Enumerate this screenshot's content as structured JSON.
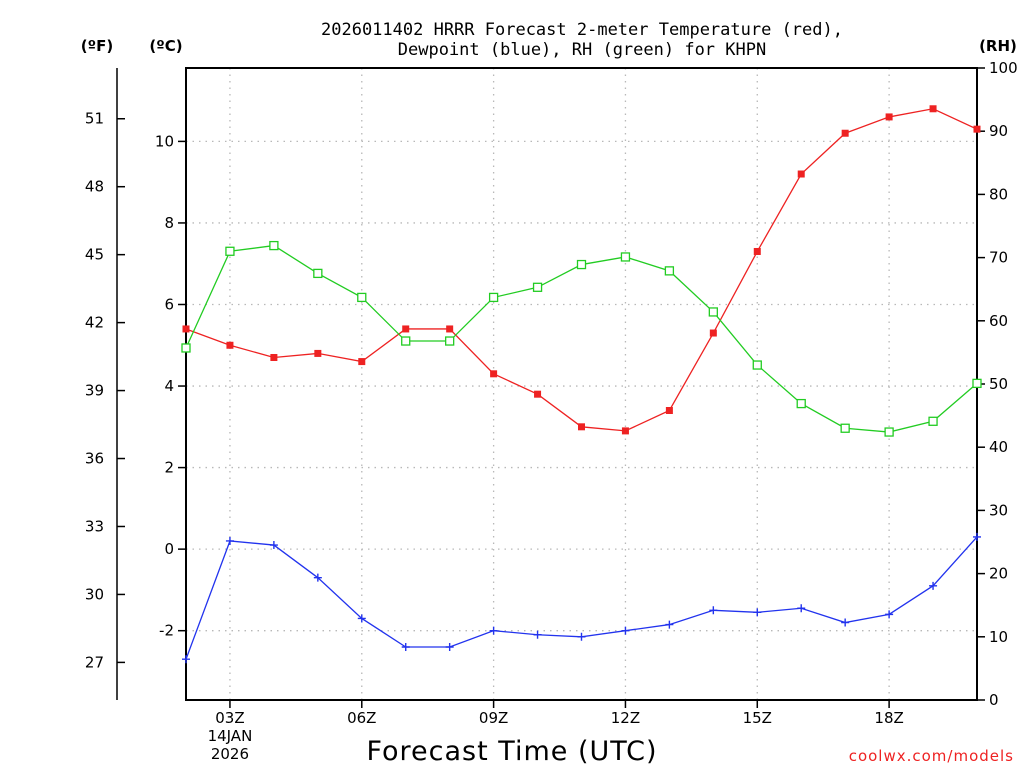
{
  "chart_data": {
    "type": "line",
    "title": [
      "2026011402 HRRR Forecast 2-meter Temperature (red),",
      "Dewpoint (blue), RH (green) for KHPN"
    ],
    "unit_labels": {
      "fahrenheit": "(ºF)",
      "celsius": "(ºC)",
      "rh": "(RH)"
    },
    "xlabel": "Forecast Time (UTC)",
    "credit": "coolwx.com/models",
    "x_hours": [
      2,
      3,
      4,
      5,
      6,
      7,
      8,
      9,
      10,
      11,
      12,
      13,
      14,
      15,
      16,
      17,
      18,
      19,
      20
    ],
    "xlim": [
      2,
      20
    ],
    "x_ticks": [
      {
        "hour": 3,
        "label": "03Z",
        "sub": [
          "14JAN",
          "2026"
        ]
      },
      {
        "hour": 6,
        "label": "06Z"
      },
      {
        "hour": 9,
        "label": "09Z"
      },
      {
        "hour": 12,
        "label": "12Z"
      },
      {
        "hour": 15,
        "label": "15Z"
      },
      {
        "hour": 18,
        "label": "18Z"
      }
    ],
    "ylim_celsius": [
      -3.7,
      11.8
    ],
    "y_ticks_celsius": [
      -2,
      0,
      2,
      4,
      6,
      8,
      10
    ],
    "y_ticks_fahrenheit": [
      27,
      30,
      33,
      36,
      39,
      42,
      45,
      48,
      51
    ],
    "ylim_rh": [
      0,
      100
    ],
    "y_ticks_rh": [
      0,
      10,
      20,
      30,
      40,
      50,
      60,
      70,
      80,
      90,
      100
    ],
    "series": [
      {
        "name": "Temperature",
        "axis": "celsius",
        "color": "#ee2222",
        "marker": "filled-square",
        "values": [
          5.4,
          5.0,
          4.7,
          4.8,
          4.6,
          5.4,
          5.4,
          4.3,
          3.8,
          3.0,
          2.9,
          3.4,
          5.3,
          7.3,
          9.2,
          10.2,
          10.6,
          10.8,
          10.3
        ]
      },
      {
        "name": "Dewpoint",
        "axis": "celsius",
        "color": "#2233ee",
        "marker": "plus",
        "values": [
          -2.7,
          0.2,
          0.1,
          -0.7,
          -1.7,
          -2.4,
          -2.4,
          -2.0,
          -2.1,
          -2.15,
          -2.0,
          -1.85,
          -1.5,
          -1.55,
          -1.45,
          -1.8,
          -1.6,
          -0.9,
          0.3
        ]
      },
      {
        "name": "RH",
        "axis": "rh",
        "color": "#22cc22",
        "marker": "open-square",
        "values": [
          55.7,
          71.0,
          71.9,
          67.5,
          63.7,
          56.8,
          56.8,
          63.7,
          65.3,
          68.9,
          70.1,
          67.9,
          61.4,
          53.0,
          46.9,
          43.0,
          42.4,
          44.1,
          50.1
        ]
      }
    ]
  }
}
